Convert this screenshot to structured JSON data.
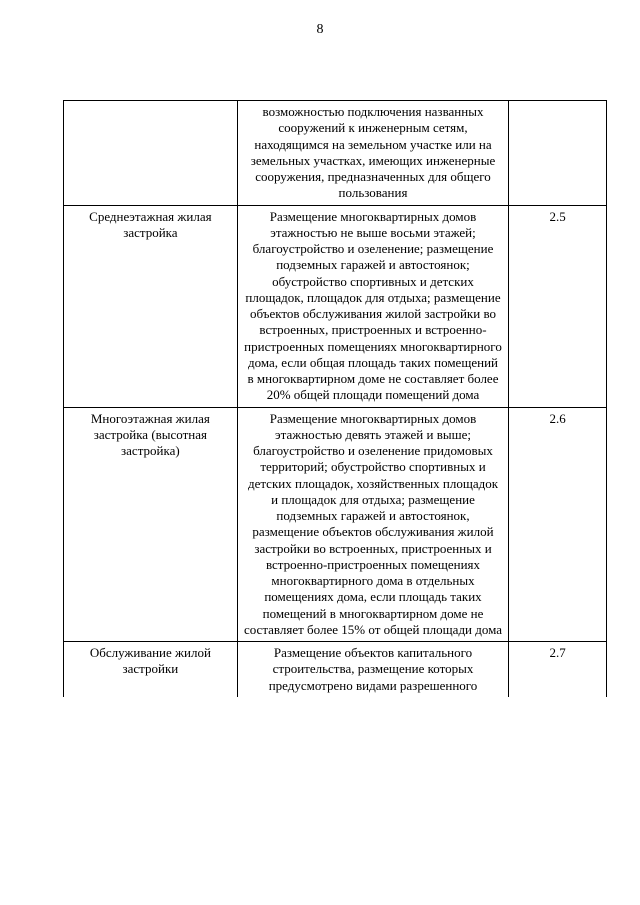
{
  "page_number": "8",
  "table": {
    "rows": [
      {
        "col1": "",
        "col2": "возможностью подключения названных сооружений к инженерным сетям, находящимся на земельном участке или на земельных участках, имеющих инженерные сооружения, предназначенных для общего пользования",
        "col3": ""
      },
      {
        "col1": "Среднеэтажная жилая застройка",
        "col2": "Размещение многоквартирных домов этажностью не выше восьми этажей; благоустройство и озеленение; размещение подземных гаражей и автостоянок; обустройство спортивных и детских площадок, площадок для отдыха; размещение объектов обслуживания жилой застройки во встроенных, пристроенных и встроенно-пристроенных помещениях многоквартирного дома, если общая площадь таких помещений в многоквартирном доме не составляет более 20% общей площади помещений дома",
        "col3": "2.5"
      },
      {
        "col1": "Многоэтажная жилая застройка (высотная застройка)",
        "col2": "Размещение многоквартирных домов этажностью девять этажей и выше; благоустройство и озеленение придомовых территорий; обустройство спортивных и детских площадок, хозяйственных площадок и площадок для отдыха; размещение подземных гаражей и автостоянок, размещение объектов обслуживания жилой застройки во встроенных, пристроенных и встроенно-пристроенных помещениях многоквартирного дома в отдельных помещениях дома, если площадь таких помещений в многоквартирном доме не составляет более 15% от общей площади дома",
        "col3": "2.6"
      },
      {
        "col1": "Обслуживание жилой застройки",
        "col2": "Размещение объектов капитального строительства, размещение которых предусмотрено видами разрешенного",
        "col3": "2.7"
      }
    ]
  }
}
